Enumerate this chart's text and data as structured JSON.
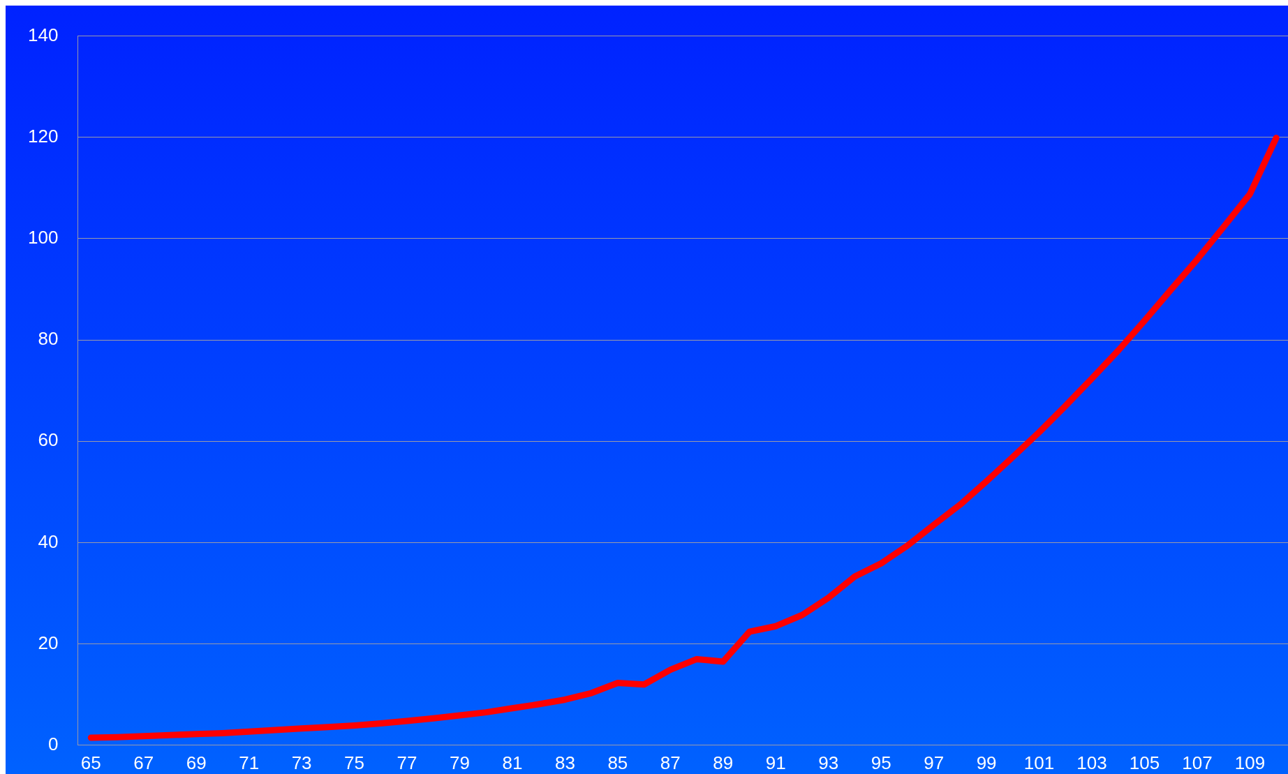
{
  "chart_data": {
    "type": "line",
    "categories": [
      "65",
      null,
      "67",
      null,
      "69",
      null,
      "71",
      null,
      "73",
      null,
      "75",
      null,
      "77",
      null,
      "79",
      null,
      "81",
      null,
      "83",
      null,
      "85",
      null,
      "87",
      null,
      "89",
      null,
      "91",
      null,
      "93",
      null,
      "95",
      null,
      "97",
      null,
      "99",
      null,
      "101",
      null,
      "103",
      null,
      "105",
      null,
      "107",
      null,
      "109",
      null
    ],
    "series": [
      {
        "color": "#ff0000",
        "values": [
          1.5,
          1.6,
          1.8,
          2.0,
          2.2,
          2.4,
          2.7,
          3.0,
          3.3,
          3.6,
          3.9,
          4.3,
          4.8,
          5.3,
          5.9,
          6.5,
          7.3,
          8.1,
          9.0,
          10.3,
          12.3,
          12.0,
          14.9,
          17.0,
          16.5,
          22.4,
          23.5,
          25.7,
          29.1,
          33.3,
          35.9,
          39.4,
          43.5,
          47.5,
          52.1,
          56.9,
          61.8,
          67.0,
          72.4,
          77.9,
          83.8,
          89.9,
          95.9,
          102.3,
          108.8,
          119.9
        ]
      }
    ],
    "ylim": [
      0,
      140
    ],
    "yticks": [
      0,
      20,
      40,
      60,
      80,
      100,
      120,
      140
    ],
    "grid": "y",
    "legend": false,
    "marker": "none",
    "line_style": "solid"
  }
}
